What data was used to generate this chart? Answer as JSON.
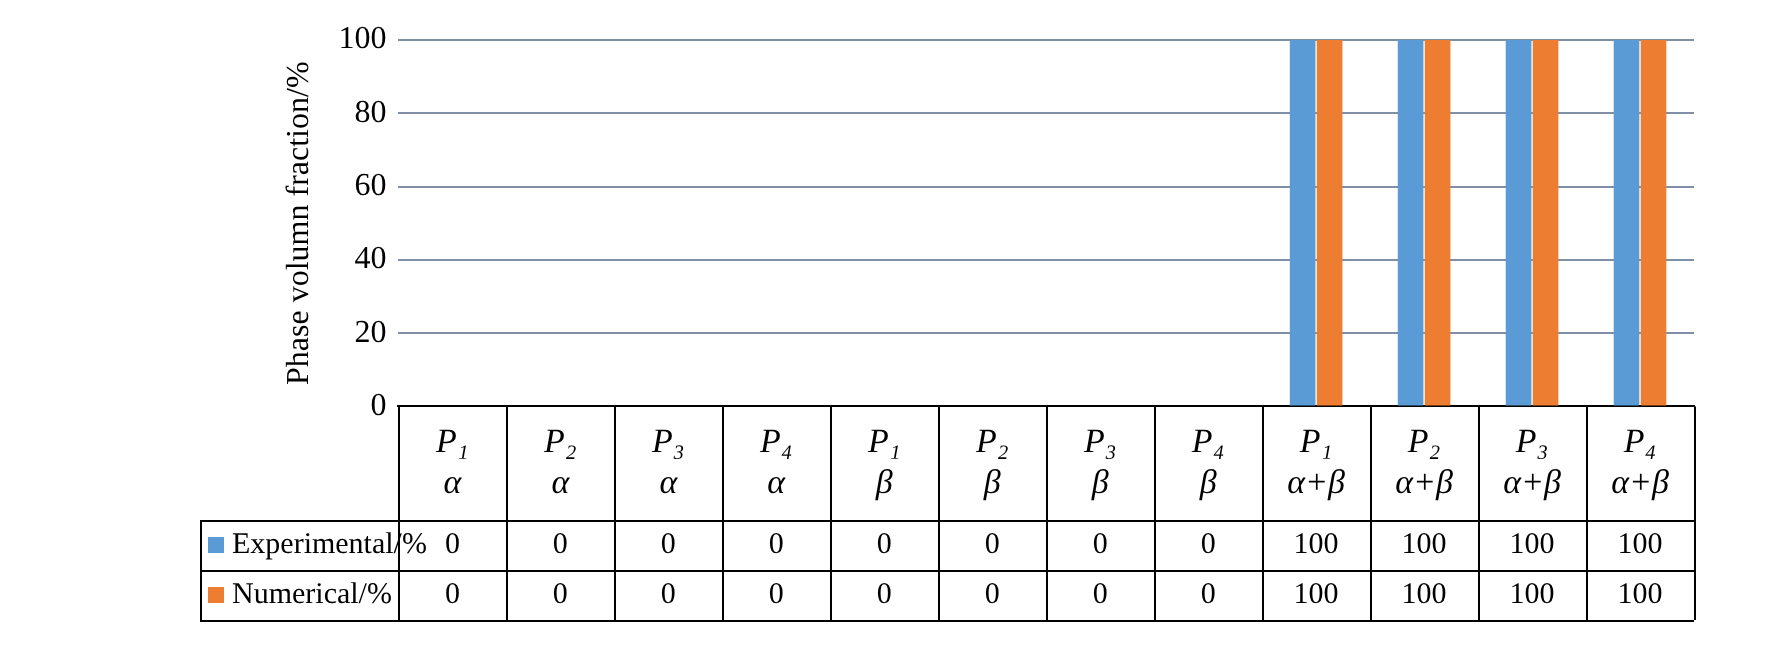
{
  "chart_data": {
    "type": "bar",
    "ylabel": "Phase volumn fraction/%",
    "categories": [
      "P₁ α",
      "P₂ α",
      "P₃ α",
      "P₄ α",
      "P₁ β",
      "P₂ β",
      "P₃ β",
      "P₄ β",
      "P₁ α+β",
      "P₂ α+β",
      "P₃ α+β",
      "P₄ α+β"
    ],
    "series": [
      {
        "name": "Experimental/%",
        "color": "#5b9bd5",
        "values": [
          0,
          0,
          0,
          0,
          0,
          0,
          0,
          0,
          100,
          100,
          100,
          100
        ]
      },
      {
        "name": "Numerical/%",
        "color": "#ed7d31",
        "values": [
          0,
          0,
          0,
          0,
          0,
          0,
          0,
          0,
          100,
          100,
          100,
          100
        ]
      }
    ],
    "ylim": [
      0,
      100
    ],
    "yticks": [
      0,
      20,
      40,
      60,
      80,
      100
    ],
    "grid": "y",
    "legend": "bottom left",
    "data_labels": true
  }
}
